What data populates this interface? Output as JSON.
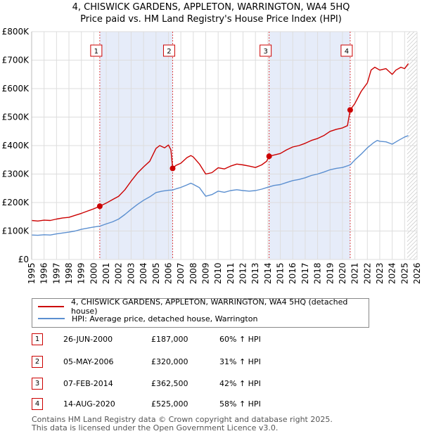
{
  "title": "4, CHISWICK GARDENS, APPLETON, WARRINGTON, WA4 5HQ",
  "subtitle": "Price paid vs. HM Land Registry's House Price Index (HPI)",
  "colors": {
    "property": "#cc0000",
    "hpi": "#5b8fd0",
    "shade": "#e6ecf9",
    "grid": "#dddddd"
  },
  "chart_data": {
    "type": "line",
    "xlim": [
      1995,
      2026
    ],
    "ylim": [
      0,
      800000
    ],
    "y_ticks": [
      {
        "value": 0,
        "label": "£0"
      },
      {
        "value": 100000,
        "label": "£100K"
      },
      {
        "value": 200000,
        "label": "£200K"
      },
      {
        "value": 300000,
        "label": "£300K"
      },
      {
        "value": 400000,
        "label": "£400K"
      },
      {
        "value": 500000,
        "label": "£500K"
      },
      {
        "value": 600000,
        "label": "£600K"
      },
      {
        "value": 700000,
        "label": "£700K"
      },
      {
        "value": 800000,
        "label": "£800K"
      }
    ],
    "x_ticks": [
      "1995",
      "1996",
      "1997",
      "1998",
      "1999",
      "2000",
      "2001",
      "2002",
      "2003",
      "2004",
      "2005",
      "2006",
      "2007",
      "2008",
      "2009",
      "2010",
      "2011",
      "2012",
      "2013",
      "2014",
      "2015",
      "2016",
      "2017",
      "2018",
      "2019",
      "2020",
      "2021",
      "2022",
      "2023",
      "2024",
      "2025",
      "2026"
    ],
    "shaded_ranges": [
      [
        2000.48,
        2006.34
      ],
      [
        2014.1,
        2020.62
      ]
    ],
    "hatched_from": 2025.2,
    "series": [
      {
        "name": "4, CHISWICK GARDENS, APPLETON, WARRINGTON, WA4 5HQ (detached house)",
        "color": "#cc0000",
        "points": [
          [
            1995,
            137000
          ],
          [
            1995.5,
            135000
          ],
          [
            1996,
            138000
          ],
          [
            1996.5,
            137000
          ],
          [
            1997,
            142000
          ],
          [
            1997.5,
            146000
          ],
          [
            1998,
            148000
          ],
          [
            1998.5,
            155000
          ],
          [
            1999,
            162000
          ],
          [
            1999.5,
            170000
          ],
          [
            2000,
            178000
          ],
          [
            2000.48,
            187000
          ],
          [
            2001,
            198000
          ],
          [
            2001.5,
            210000
          ],
          [
            2002,
            222000
          ],
          [
            2002.5,
            245000
          ],
          [
            2003,
            275000
          ],
          [
            2003.5,
            303000
          ],
          [
            2004,
            325000
          ],
          [
            2004.5,
            345000
          ],
          [
            2005,
            390000
          ],
          [
            2005.3,
            400000
          ],
          [
            2005.7,
            392000
          ],
          [
            2006,
            402000
          ],
          [
            2006.2,
            385000
          ],
          [
            2006.34,
            320000
          ],
          [
            2006.6,
            330000
          ],
          [
            2007,
            338000
          ],
          [
            2007.5,
            358000
          ],
          [
            2007.8,
            365000
          ],
          [
            2008,
            360000
          ],
          [
            2008.5,
            335000
          ],
          [
            2009,
            300000
          ],
          [
            2009.5,
            305000
          ],
          [
            2010,
            322000
          ],
          [
            2010.5,
            318000
          ],
          [
            2011,
            328000
          ],
          [
            2011.5,
            335000
          ],
          [
            2012,
            332000
          ],
          [
            2012.5,
            328000
          ],
          [
            2013,
            323000
          ],
          [
            2013.5,
            332000
          ],
          [
            2013.9,
            345000
          ],
          [
            2014.1,
            362500
          ],
          [
            2014.5,
            367000
          ],
          [
            2015,
            372000
          ],
          [
            2015.5,
            385000
          ],
          [
            2016,
            395000
          ],
          [
            2016.5,
            400000
          ],
          [
            2017,
            408000
          ],
          [
            2017.5,
            418000
          ],
          [
            2018,
            425000
          ],
          [
            2018.5,
            435000
          ],
          [
            2019,
            450000
          ],
          [
            2019.5,
            457000
          ],
          [
            2020,
            462000
          ],
          [
            2020.4,
            470000
          ],
          [
            2020.62,
            525000
          ],
          [
            2021,
            548000
          ],
          [
            2021.5,
            590000
          ],
          [
            2022,
            620000
          ],
          [
            2022.3,
            665000
          ],
          [
            2022.6,
            675000
          ],
          [
            2023,
            665000
          ],
          [
            2023.5,
            670000
          ],
          [
            2024,
            650000
          ],
          [
            2024.3,
            665000
          ],
          [
            2024.7,
            675000
          ],
          [
            2025,
            670000
          ],
          [
            2025.3,
            688000
          ]
        ]
      },
      {
        "name": "HPI: Average price, detached house, Warrington",
        "color": "#5b8fd0",
        "points": [
          [
            1995,
            86000
          ],
          [
            1995.5,
            85000
          ],
          [
            1996,
            87000
          ],
          [
            1996.5,
            86000
          ],
          [
            1997,
            90000
          ],
          [
            1997.5,
            93000
          ],
          [
            1998,
            96000
          ],
          [
            1998.5,
            100000
          ],
          [
            1999,
            106000
          ],
          [
            1999.5,
            110000
          ],
          [
            2000,
            114000
          ],
          [
            2000.48,
            117000
          ],
          [
            2001,
            125000
          ],
          [
            2001.5,
            132000
          ],
          [
            2002,
            142000
          ],
          [
            2002.5,
            158000
          ],
          [
            2003,
            176000
          ],
          [
            2003.5,
            193000
          ],
          [
            2004,
            208000
          ],
          [
            2004.5,
            220000
          ],
          [
            2005,
            235000
          ],
          [
            2005.5,
            240000
          ],
          [
            2006,
            243000
          ],
          [
            2006.34,
            244000
          ],
          [
            2006.6,
            248000
          ],
          [
            2007,
            253000
          ],
          [
            2007.5,
            262000
          ],
          [
            2007.8,
            268000
          ],
          [
            2008,
            264000
          ],
          [
            2008.5,
            252000
          ],
          [
            2009,
            222000
          ],
          [
            2009.5,
            228000
          ],
          [
            2010,
            240000
          ],
          [
            2010.5,
            236000
          ],
          [
            2011,
            242000
          ],
          [
            2011.5,
            245000
          ],
          [
            2012,
            242000
          ],
          [
            2012.5,
            240000
          ],
          [
            2013,
            242000
          ],
          [
            2013.5,
            247000
          ],
          [
            2014.1,
            255000
          ],
          [
            2014.5,
            260000
          ],
          [
            2015,
            263000
          ],
          [
            2015.5,
            270000
          ],
          [
            2016,
            277000
          ],
          [
            2016.5,
            281000
          ],
          [
            2017,
            287000
          ],
          [
            2017.5,
            295000
          ],
          [
            2018,
            300000
          ],
          [
            2018.5,
            307000
          ],
          [
            2019,
            315000
          ],
          [
            2019.5,
            320000
          ],
          [
            2020,
            323000
          ],
          [
            2020.62,
            332000
          ],
          [
            2021,
            350000
          ],
          [
            2021.5,
            370000
          ],
          [
            2022,
            392000
          ],
          [
            2022.5,
            410000
          ],
          [
            2022.8,
            418000
          ],
          [
            2023,
            415000
          ],
          [
            2023.5,
            413000
          ],
          [
            2024,
            405000
          ],
          [
            2024.5,
            418000
          ],
          [
            2025,
            430000
          ],
          [
            2025.3,
            435000
          ]
        ]
      }
    ],
    "sales": [
      {
        "id": "1",
        "x": 2000.48,
        "y": 187000
      },
      {
        "id": "2",
        "x": 2006.34,
        "y": 320000
      },
      {
        "id": "3",
        "x": 2014.1,
        "y": 362500
      },
      {
        "id": "4",
        "x": 2020.62,
        "y": 525000
      }
    ]
  },
  "legend": {
    "property": "4, CHISWICK GARDENS, APPLETON, WARRINGTON, WA4 5HQ (detached house)",
    "hpi": "HPI: Average price, detached house, Warrington"
  },
  "table": [
    {
      "num": "1",
      "date": "26-JUN-2000",
      "price": "£187,000",
      "hpi": "60% ↑ HPI"
    },
    {
      "num": "2",
      "date": "05-MAY-2006",
      "price": "£320,000",
      "hpi": "31% ↑ HPI"
    },
    {
      "num": "3",
      "date": "07-FEB-2014",
      "price": "£362,500",
      "hpi": "42% ↑ HPI"
    },
    {
      "num": "4",
      "date": "14-AUG-2020",
      "price": "£525,000",
      "hpi": "58% ↑ HPI"
    }
  ],
  "footer": {
    "line1": "Contains HM Land Registry data © Crown copyright and database right 2025.",
    "line2": "This data is licensed under the Open Government Licence v3.0."
  }
}
